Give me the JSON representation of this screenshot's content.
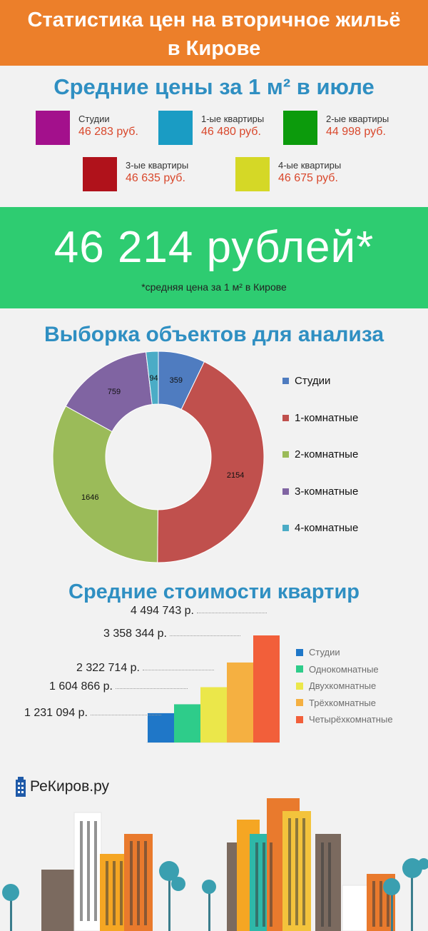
{
  "header": {
    "line1": "Статистика цен на вторичное жильё",
    "line2": "в Кирове"
  },
  "prices": {
    "title": "Средние цены за 1 м² в июле",
    "items": [
      {
        "label": "Студии",
        "value": "46 283 руб.",
        "color": "#a3108c"
      },
      {
        "label": "1-ые квартиры",
        "value": "46 480 руб.",
        "color": "#1a9cc4"
      },
      {
        "label": "2-ые квартиры",
        "value": "44 998 руб.",
        "color": "#0c9b0c"
      },
      {
        "label": "3-ые квартиры",
        "value": "46 635 руб.",
        "color": "#b0121b"
      },
      {
        "label": "4-ые квартиры",
        "value": "46 675 руб.",
        "color": "#d5d826"
      }
    ]
  },
  "average": {
    "value": "46 214 рублей*",
    "note": "*средняя цена за 1 м² в Кирове"
  },
  "sample": {
    "title": "Выборка объектов для анализа"
  },
  "bars": {
    "title": "Средние стоимости квартир"
  },
  "logo": {
    "text": "РеКиров.ру"
  },
  "chart_data": [
    {
      "type": "pie",
      "title": "Выборка объектов для анализа",
      "categories": [
        "Студии",
        "1-комнатные",
        "2-комнатные",
        "3-комнатные",
        "4-комнатные"
      ],
      "values": [
        359,
        2154,
        1646,
        759,
        94
      ],
      "labels": [
        "359",
        "2154",
        "1646",
        "759",
        "94"
      ],
      "colors": [
        "#4f7cc0",
        "#c0504d",
        "#9bbb59",
        "#8064a2",
        "#4bacc6"
      ],
      "donut": true,
      "legend": "right"
    },
    {
      "type": "bar",
      "title": "Средние стоимости квартир",
      "categories": [
        "Студии",
        "Однокомнатные",
        "Двухкомнатные",
        "Трёхкомнатные",
        "Четырёхкомнатные"
      ],
      "values": [
        1231094,
        1604866,
        2322714,
        3358344,
        4494743
      ],
      "labels": [
        "1 231 094 р.",
        "1 604 866 р.",
        "2 322 714 р.",
        "3 358 344 р.",
        "4 494 743 р."
      ],
      "colors": [
        "#1f77c8",
        "#2ecc8a",
        "#ebe74a",
        "#f5b041",
        "#f25f3a"
      ],
      "legend": "right"
    }
  ]
}
